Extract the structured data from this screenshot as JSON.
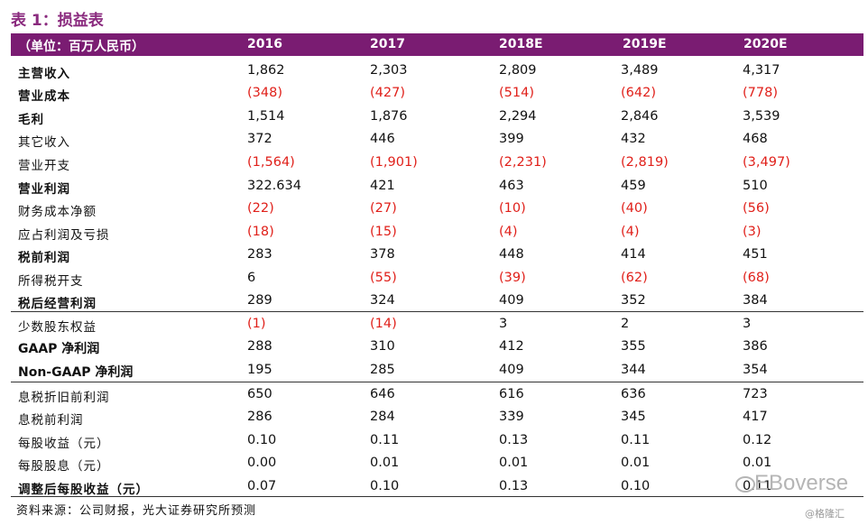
{
  "title": "表 1：损益表",
  "header": {
    "unit": "（单位：百万人民币）",
    "years": [
      "2016",
      "2017",
      "2018E",
      "2019E",
      "2020E"
    ]
  },
  "rows": [
    {
      "label": "主营收入",
      "bold": true,
      "values": [
        "1,862",
        "2,303",
        "2,809",
        "3,489",
        "4,317"
      ]
    },
    {
      "label": "营业成本",
      "bold": true,
      "values": [
        "(348)",
        "(427)",
        "(514)",
        "(642)",
        "(778)"
      ]
    },
    {
      "label": "毛利",
      "bold": true,
      "values": [
        "1,514",
        "1,876",
        "2,294",
        "2,846",
        "3,539"
      ]
    },
    {
      "label": "其它收入",
      "bold": false,
      "values": [
        "372",
        "446",
        "399",
        "432",
        "468"
      ]
    },
    {
      "label": "营业开支",
      "bold": false,
      "values": [
        "(1,564)",
        "(1,901)",
        "(2,231)",
        "(2,819)",
        "(3,497)"
      ]
    },
    {
      "label": "营业利润",
      "bold": true,
      "values": [
        "322.634",
        "421",
        "463",
        "459",
        "510"
      ]
    },
    {
      "label": "财务成本净额",
      "bold": false,
      "values": [
        "(22)",
        "(27)",
        "(10)",
        "(40)",
        "(56)"
      ]
    },
    {
      "label": "应占利润及亏损",
      "bold": false,
      "values": [
        "(18)",
        "(15)",
        "(4)",
        "(4)",
        "(3)"
      ]
    },
    {
      "label": "税前利润",
      "bold": true,
      "values": [
        "283",
        "378",
        "448",
        "414",
        "451"
      ]
    },
    {
      "label": "所得税开支",
      "bold": false,
      "values": [
        "6",
        "(55)",
        "(39)",
        "(62)",
        "(68)"
      ]
    },
    {
      "label": "税后经营利润",
      "bold": true,
      "values": [
        "289",
        "324",
        "409",
        "352",
        "384"
      ]
    },
    {
      "label": "少数股东权益",
      "bold": false,
      "values": [
        "(1)",
        "(14)",
        "3",
        "2",
        "3"
      ]
    },
    {
      "label": "GAAP 净利润",
      "bold": true,
      "latin": true,
      "values": [
        "288",
        "310",
        "412",
        "355",
        "386"
      ]
    },
    {
      "label": "Non-GAAP 净利润",
      "bold": true,
      "latin": true,
      "values": [
        "195",
        "285",
        "409",
        "344",
        "354"
      ]
    },
    {
      "label": "息税折旧前利润",
      "bold": false,
      "values": [
        "650",
        "646",
        "616",
        "636",
        "723"
      ]
    },
    {
      "label": "息税前利润",
      "bold": false,
      "values": [
        "286",
        "284",
        "339",
        "345",
        "417"
      ]
    },
    {
      "label": "每股收益（元）",
      "bold": false,
      "values": [
        "0.10",
        "0.11",
        "0.13",
        "0.11",
        "0.12"
      ]
    },
    {
      "label": "每股股息（元）",
      "bold": false,
      "values": [
        "0.00",
        "0.01",
        "0.01",
        "0.01",
        "0.01"
      ]
    },
    {
      "label": "调整后每股收益（元）",
      "bold": true,
      "values": [
        "0.07",
        "0.10",
        "0.13",
        "0.10",
        "0.11"
      ]
    }
  ],
  "footer": "资料来源：公司财报，光大证券研究所预测",
  "watermark": "EBoverse",
  "credit": "@格隆汇",
  "colors": {
    "header_bg": "#7a1c72",
    "negative": "#e0201a"
  }
}
